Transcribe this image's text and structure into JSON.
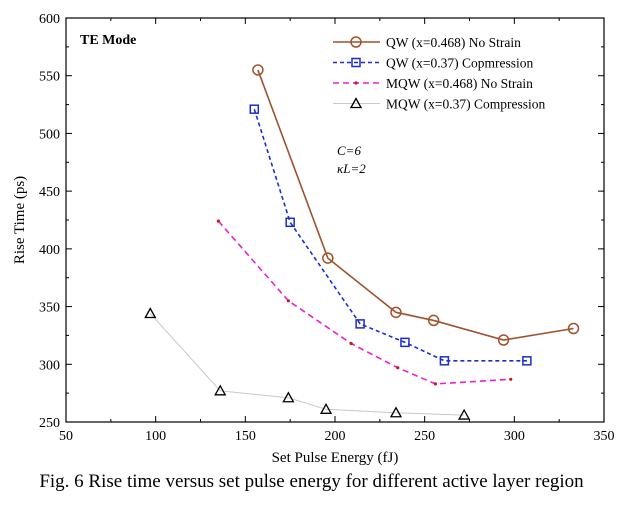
{
  "chart_data": {
    "type": "line",
    "title": "",
    "mode_label": "TE Mode",
    "xlabel": "Set Pulse Energy (fJ)",
    "ylabel": "Rise Time (ps)",
    "xlim": [
      50,
      350
    ],
    "ylim": [
      250,
      600
    ],
    "xticks": [
      "50",
      "100",
      "150",
      "200",
      "250",
      "300",
      "350"
    ],
    "yticks": [
      "250",
      "300",
      "350",
      "400",
      "450",
      "500",
      "550",
      "600"
    ],
    "grid": false,
    "legend_position": "top-right",
    "annotation": [
      "C=6",
      "κL=2"
    ],
    "series": [
      {
        "name": "QW (x=0.468)  No Strain",
        "color": "#a0522d",
        "marker": "circle",
        "dash": "",
        "points": [
          [
            157,
            555
          ],
          [
            196,
            392
          ],
          [
            234,
            345
          ],
          [
            255,
            338
          ],
          [
            294,
            321
          ],
          [
            333,
            331
          ]
        ]
      },
      {
        "name": "QW (x=0.37) Copmression",
        "color": "#1a2ecc",
        "marker": "square",
        "dash": "4 3",
        "points": [
          [
            155,
            521
          ],
          [
            175,
            423
          ],
          [
            214,
            335
          ],
          [
            239,
            319
          ],
          [
            261,
            303
          ],
          [
            307,
            303
          ]
        ]
      },
      {
        "name": "MQW (x=0.468) No Strain",
        "color": "#ee1fd0",
        "marker": "dot",
        "dash": "6 4",
        "points": [
          [
            135,
            424
          ],
          [
            174,
            355
          ],
          [
            209,
            318
          ],
          [
            235,
            297
          ],
          [
            256,
            283
          ],
          [
            298,
            287
          ]
        ]
      },
      {
        "name": "MQW (x=0.37)  Compression",
        "color": "#c8c8c8",
        "marker": "triangle",
        "dash": "",
        "points": [
          [
            97,
            344
          ],
          [
            136,
            277
          ],
          [
            174,
            271
          ],
          [
            195,
            261
          ],
          [
            234,
            258
          ],
          [
            272,
            256
          ]
        ]
      }
    ]
  },
  "caption": "Fig. 6 Rise time versus set pulse energy for different active layer region"
}
